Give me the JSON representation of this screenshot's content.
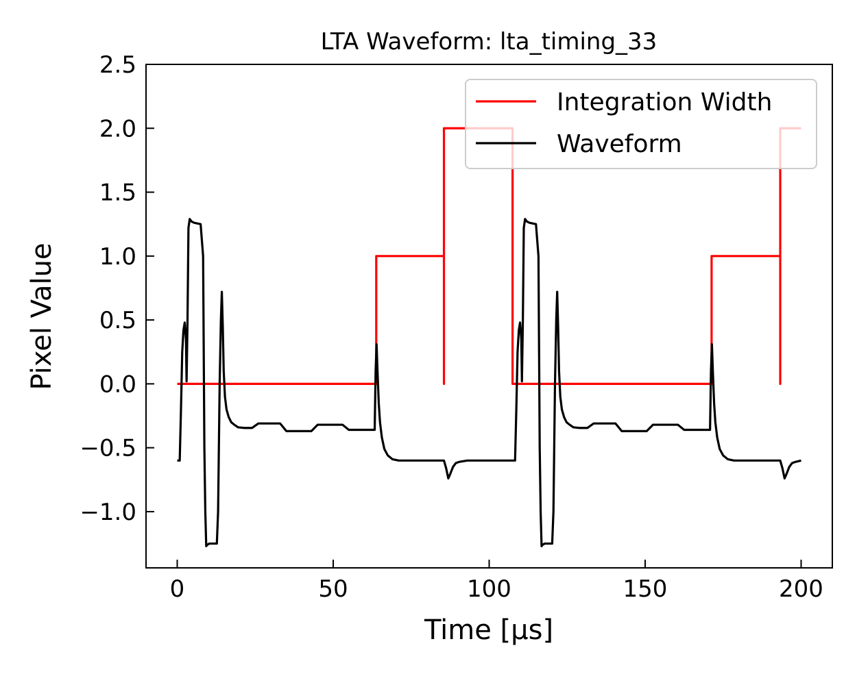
{
  "chart_data": {
    "type": "line",
    "title": "LTA Waveform: lta_timing_33",
    "xlabel": "Time [μs]",
    "ylabel": "Pixel Value",
    "xlim": [
      -10,
      210
    ],
    "ylim": [
      -1.44,
      2.5
    ],
    "xticks": [
      0,
      50,
      100,
      150,
      200
    ],
    "xtick_labels": [
      "0",
      "50",
      "100",
      "150",
      "200"
    ],
    "yticks": [
      -1.0,
      -0.5,
      0.0,
      0.5,
      1.0,
      1.5,
      2.0,
      2.5
    ],
    "ytick_labels": [
      "−1.0",
      "−0.5",
      "0.0",
      "0.5",
      "1.0",
      "1.5",
      "2.0",
      "2.5"
    ],
    "grid": false,
    "legend_position": "top-right",
    "series": [
      {
        "name": "Integration Width",
        "color": "#ff0000",
        "x": [
          0,
          63.8,
          63.8,
          85.5,
          85.5,
          85.5,
          85.5,
          107.5,
          107.5,
          171.3,
          171.3,
          193.3,
          193.3,
          193.3,
          193.3,
          200
        ],
        "y": [
          0,
          0,
          1.0,
          1.0,
          0,
          0,
          2.0,
          2.0,
          0,
          0,
          1.0,
          1.0,
          0,
          0,
          2.0,
          2.0
        ]
      },
      {
        "name": "Waveform",
        "color": "#000000",
        "x": [
          0,
          0.8,
          1.2,
          1.6,
          2.0,
          2.4,
          2.8,
          3.0,
          3.3,
          3.6,
          4.0,
          4.6,
          5.5,
          7.5,
          8.3,
          8.7,
          9.0,
          9.3,
          9.6,
          10.3,
          12.7,
          13.1,
          13.6,
          14.0,
          14.3,
          14.6,
          14.9,
          15.3,
          15.8,
          16.5,
          17.3,
          18.3,
          19.5,
          21.5,
          24.0,
          26.0,
          28.0,
          33.0,
          35.0,
          37.0,
          43.0,
          45.0,
          47.0,
          53.0,
          55.0,
          57.0,
          63.0,
          63.3,
          63.6,
          63.9,
          64.2,
          64.6,
          65.0,
          65.6,
          66.4,
          67.5,
          69.0,
          71.0,
          75.0,
          80.0,
          85.5,
          86.2,
          86.9,
          87.6,
          88.4,
          89.3,
          90.5,
          93.0,
          100.0,
          107.5,
          108.3,
          108.7,
          109.1,
          109.5,
          109.9,
          110.3,
          110.5,
          110.8,
          111.1,
          111.5,
          112.1,
          113.0,
          115.0,
          115.8,
          116.2,
          116.5,
          116.8,
          117.1,
          117.8,
          120.2,
          120.6,
          121.1,
          121.5,
          121.8,
          122.1,
          122.4,
          122.8,
          123.3,
          124.0,
          124.8,
          125.8,
          127.0,
          129.0,
          131.5,
          133.5,
          135.5,
          140.5,
          142.5,
          144.5,
          150.5,
          152.5,
          154.5,
          160.5,
          162.5,
          164.5,
          170.5,
          170.8,
          171.1,
          171.4,
          171.7,
          172.1,
          172.5,
          173.1,
          173.9,
          175.0,
          176.5,
          178.5,
          182.5,
          187.5,
          193.3,
          194.0,
          194.7,
          195.4,
          196.2,
          197.1,
          198.3,
          200.0
        ],
        "y": [
          -0.6,
          -0.6,
          -0.2,
          0.25,
          0.42,
          0.48,
          0.35,
          0.02,
          0.5,
          1.22,
          1.29,
          1.27,
          1.26,
          1.25,
          1.0,
          -0.5,
          -1.0,
          -1.27,
          -1.26,
          -1.25,
          -1.25,
          -1.0,
          0.0,
          0.5,
          0.72,
          0.45,
          0.1,
          -0.1,
          -0.2,
          -0.26,
          -0.3,
          -0.32,
          -0.34,
          -0.345,
          -0.345,
          -0.31,
          -0.31,
          -0.31,
          -0.37,
          -0.37,
          -0.37,
          -0.32,
          -0.32,
          -0.32,
          -0.36,
          -0.36,
          -0.36,
          -0.36,
          0.1,
          0.31,
          0.1,
          -0.15,
          -0.3,
          -0.42,
          -0.51,
          -0.56,
          -0.59,
          -0.6,
          -0.6,
          -0.6,
          -0.6,
          -0.66,
          -0.74,
          -0.7,
          -0.65,
          -0.62,
          -0.61,
          -0.6,
          -0.6,
          -0.6,
          -0.6,
          -0.2,
          0.25,
          0.42,
          0.48,
          0.35,
          0.02,
          0.5,
          1.22,
          1.29,
          1.27,
          1.26,
          1.25,
          1.0,
          -0.5,
          -1.0,
          -1.27,
          -1.26,
          -1.25,
          -1.25,
          -1.0,
          0.0,
          0.5,
          0.72,
          0.45,
          0.1,
          -0.1,
          -0.2,
          -0.26,
          -0.3,
          -0.32,
          -0.34,
          -0.345,
          -0.345,
          -0.31,
          -0.31,
          -0.31,
          -0.37,
          -0.37,
          -0.37,
          -0.32,
          -0.32,
          -0.32,
          -0.36,
          -0.36,
          -0.36,
          -0.36,
          0.1,
          0.31,
          0.1,
          -0.15,
          -0.3,
          -0.42,
          -0.51,
          -0.56,
          -0.59,
          -0.6,
          -0.6,
          -0.6,
          -0.6,
          -0.66,
          -0.74,
          -0.7,
          -0.65,
          -0.62,
          -0.61,
          -0.6
        ]
      }
    ]
  }
}
